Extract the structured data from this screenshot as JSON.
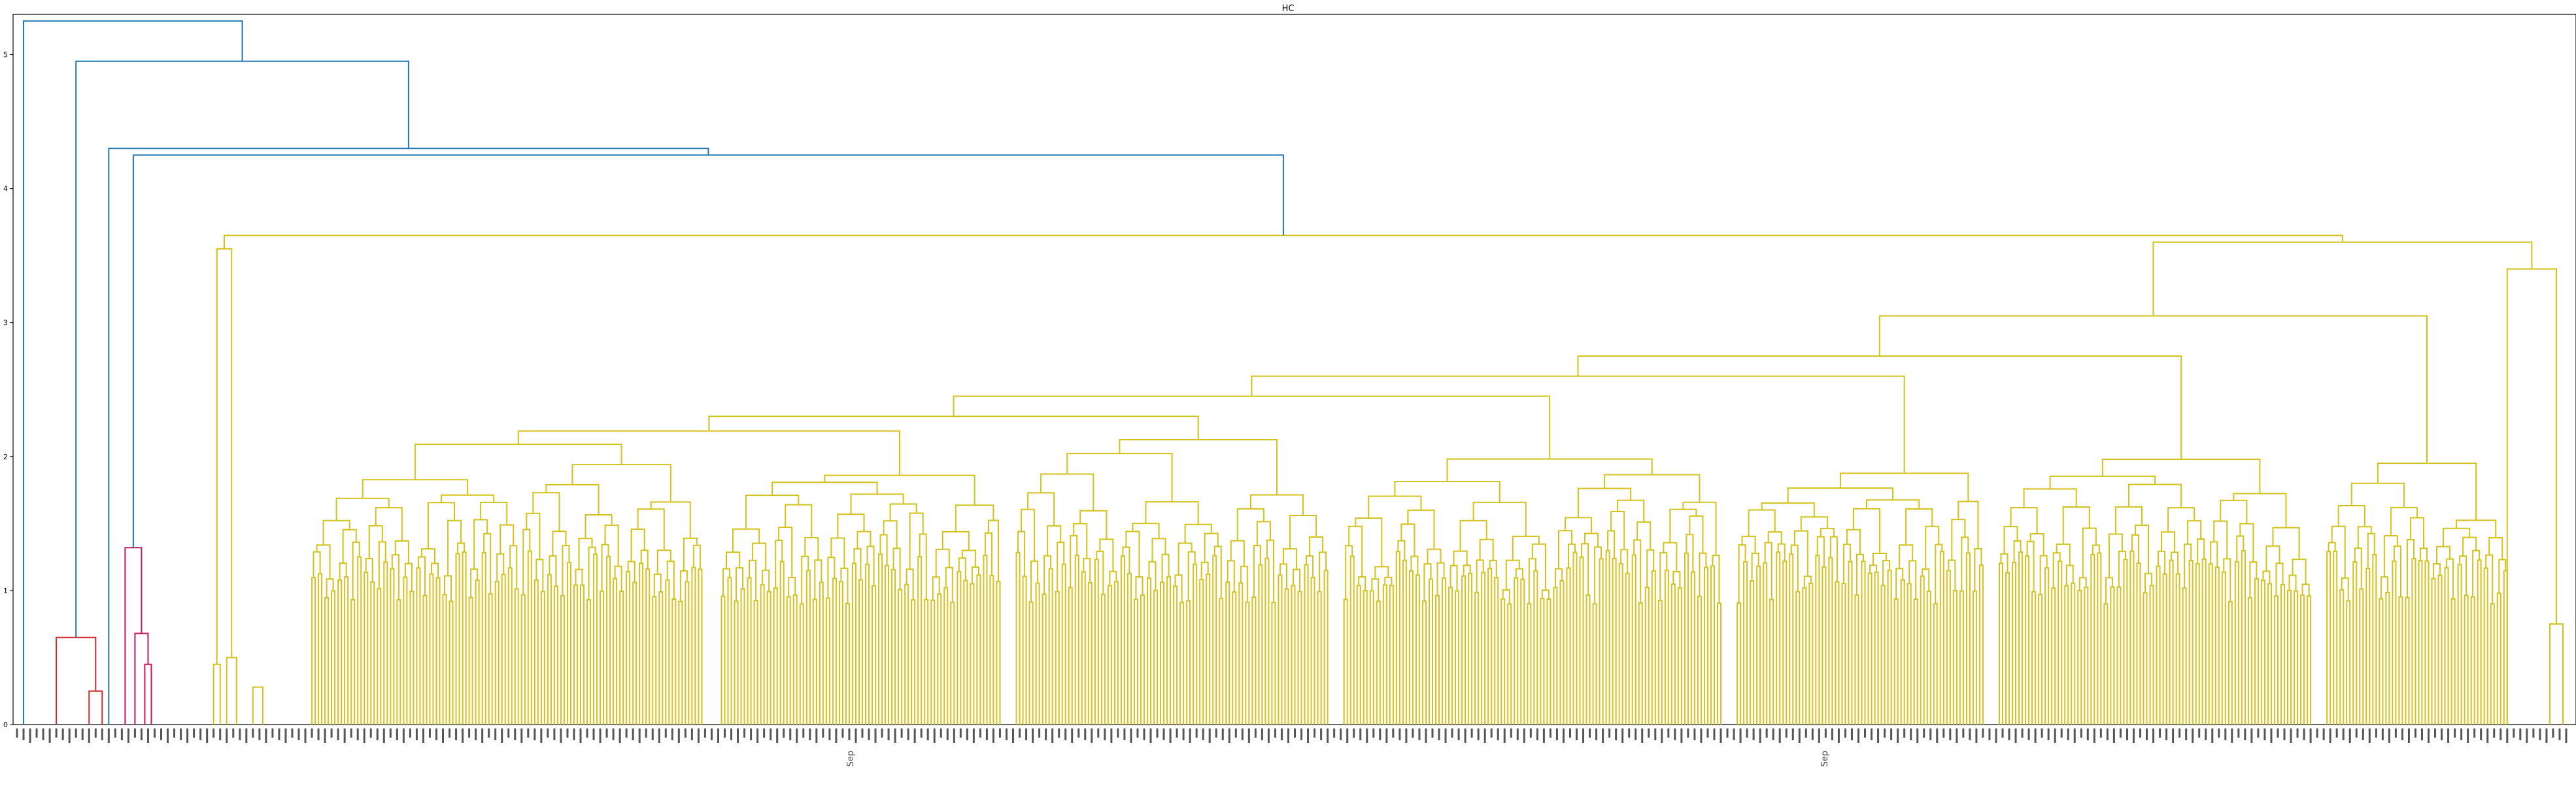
{
  "chart_data": {
    "type": "dendrogram",
    "title": "HC",
    "xlabel": "",
    "ylabel": "",
    "ylim": [
      0,
      5.3
    ],
    "y_ticks": [
      0,
      1,
      2,
      3,
      4,
      5
    ],
    "grid": false,
    "legend": "none",
    "colors": {
      "top": "#1f77b4",
      "cluster_red": "#d62728",
      "cluster_magenta": "#c2185b",
      "cluster_yellow": "#d4c21a"
    },
    "leaf_label_samples": [
      "Sep",
      "Sep"
    ],
    "merges": [
      {
        "name": "red-cluster",
        "left_leaf": 12,
        "right_leaf": 24,
        "height": 0.65,
        "color": "cluster_red",
        "inner": [
          {
            "left_leaf": 22,
            "right_leaf": 24,
            "height": 0.25
          }
        ]
      },
      {
        "name": "magenta-cluster",
        "left_leaf": 33,
        "right_leaf": 40,
        "height": 1.32,
        "color": "cluster_magenta",
        "inner": [
          {
            "left_leaf": 36,
            "right_leaf": 40,
            "height": 0.68
          },
          {
            "left_leaf": 38,
            "right_leaf": 40,
            "height": 0.45
          }
        ]
      },
      {
        "name": "yellow-main",
        "height": 3.65,
        "color": "cluster_yellow",
        "levels": [
          3.55,
          3.4,
          3.35,
          3.1,
          3.05,
          2.75,
          2.6,
          2.45,
          2.3,
          2.05,
          1.85,
          1.7
        ]
      },
      {
        "name": "top-1",
        "height": 4.25,
        "color": "top"
      },
      {
        "name": "top-2",
        "height": 4.3,
        "color": "top"
      },
      {
        "name": "top-3",
        "height": 4.95,
        "color": "top"
      },
      {
        "name": "top-4",
        "height": 5.25,
        "color": "top"
      }
    ]
  }
}
